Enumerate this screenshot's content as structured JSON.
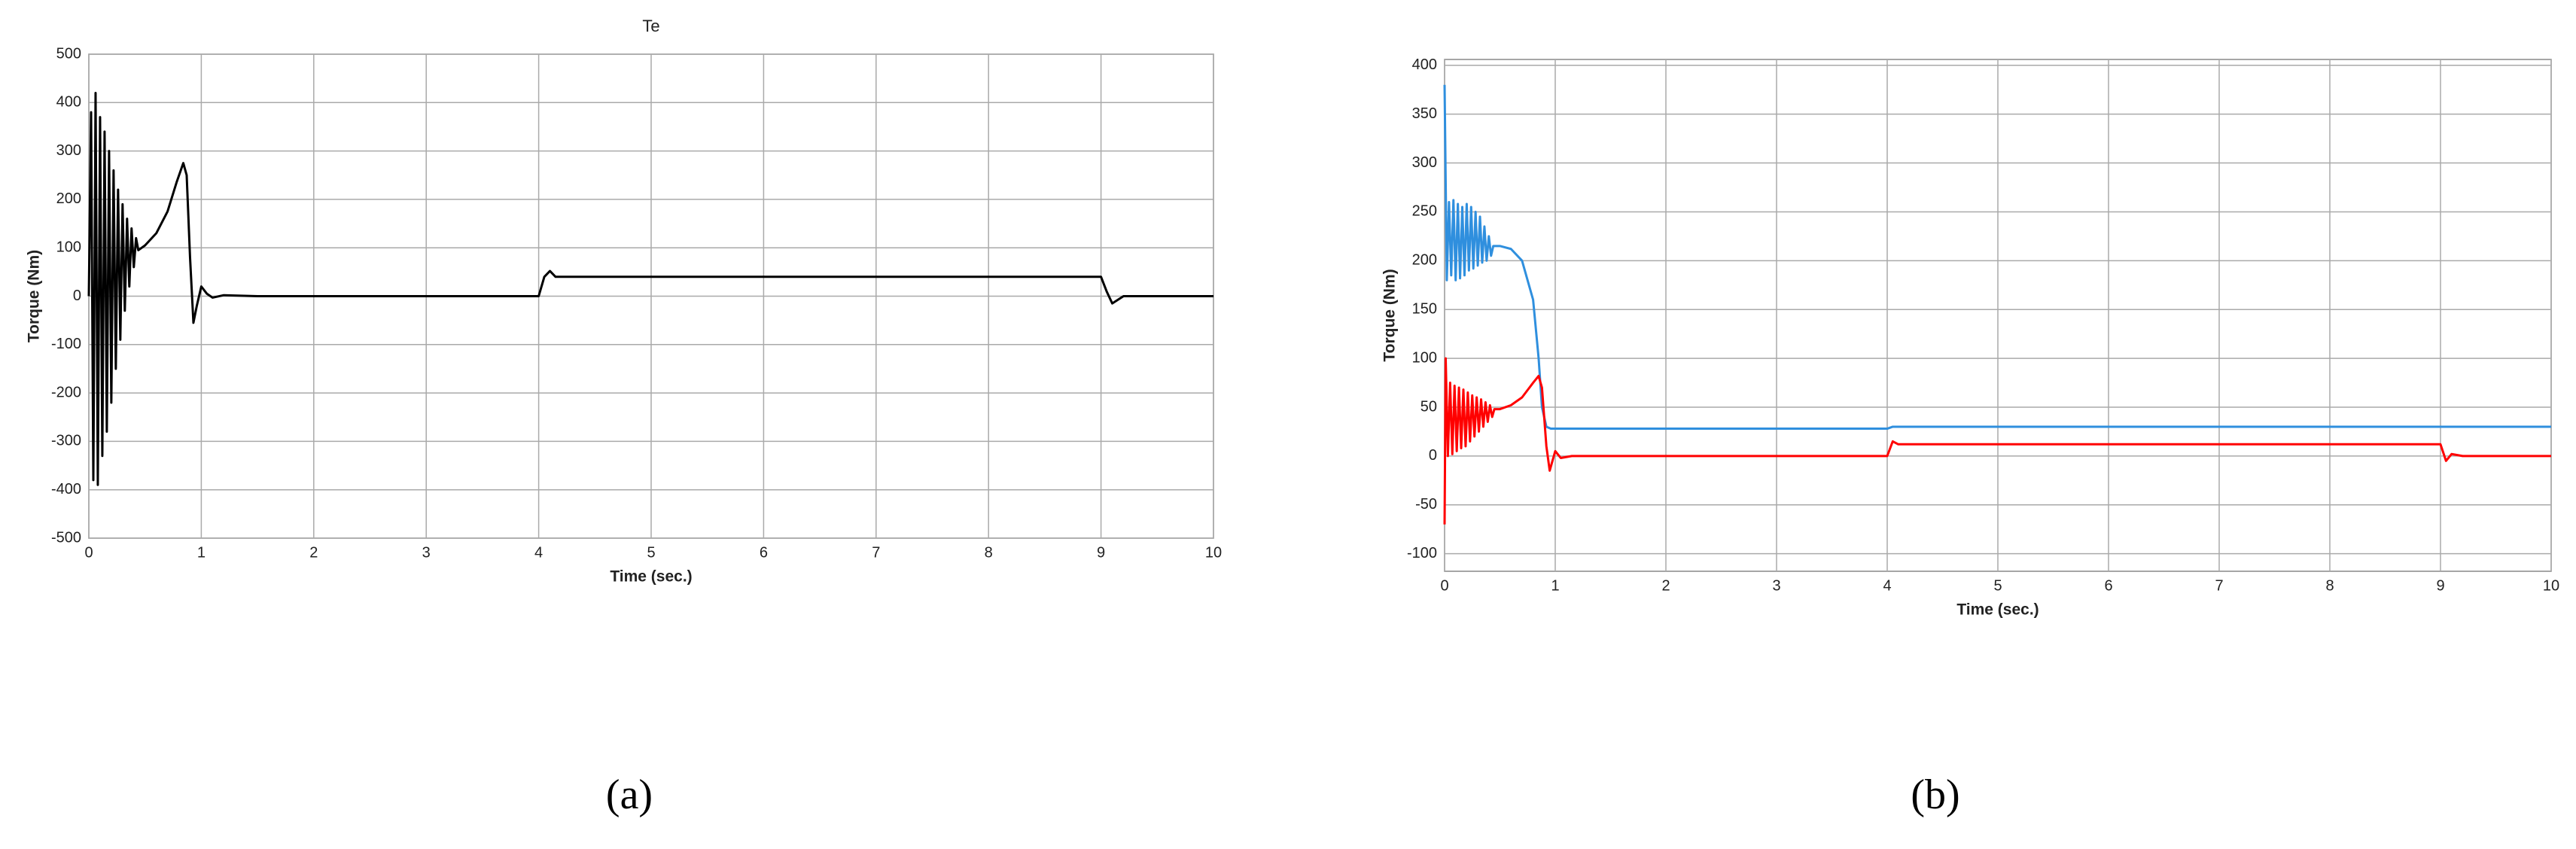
{
  "chart_data": [
    {
      "type": "line",
      "title": "Te",
      "caption": "(a)",
      "x_label": "Time (sec.)",
      "y_label": "Torque (Nm)",
      "xlim": [
        0,
        10
      ],
      "ylim": [
        -500,
        500
      ],
      "xticks": [
        0,
        1,
        2,
        3,
        4,
        5,
        6,
        7,
        8,
        9,
        10
      ],
      "yticks": [
        -500,
        -400,
        -300,
        -200,
        -100,
        0,
        100,
        200,
        300,
        400,
        500
      ],
      "grid": true,
      "series": [
        {
          "color": "#000000",
          "x": [
            0,
            0.02,
            0.04,
            0.06,
            0.08,
            0.1,
            0.12,
            0.14,
            0.16,
            0.18,
            0.2,
            0.22,
            0.24,
            0.26,
            0.28,
            0.3,
            0.32,
            0.34,
            0.36,
            0.38,
            0.4,
            0.42,
            0.44,
            0.5,
            0.6,
            0.7,
            0.78,
            0.84,
            0.87,
            0.9,
            0.93,
            0.96,
            1.0,
            1.05,
            1.1,
            1.2,
            1.5,
            4.0,
            4.05,
            4.1,
            4.15,
            4.3,
            9.0,
            9.05,
            9.1,
            9.2,
            10
          ],
          "values": [
            0,
            380,
            -380,
            420,
            -390,
            370,
            -330,
            340,
            -280,
            300,
            -220,
            260,
            -150,
            220,
            -90,
            190,
            -30,
            160,
            20,
            140,
            60,
            120,
            95,
            105,
            130,
            175,
            235,
            275,
            250,
            80,
            -55,
            -20,
            20,
            5,
            -3,
            2,
            0,
            0,
            40,
            52,
            40,
            40,
            40,
            10,
            -15,
            0,
            0
          ]
        }
      ]
    },
    {
      "type": "line",
      "caption": "(b)",
      "x_label": "Time (sec.)",
      "y_label": "Torque (Nm)",
      "xlim": [
        0,
        10
      ],
      "ylim": [
        -118,
        406
      ],
      "xticks": [
        0,
        1,
        2,
        3,
        4,
        5,
        6,
        7,
        8,
        9,
        10
      ],
      "yticks": [
        -100,
        -50,
        0,
        50,
        100,
        150,
        200,
        250,
        300,
        350,
        400
      ],
      "grid": true,
      "series": [
        {
          "color": "#2f8fde",
          "x": [
            0,
            0.02,
            0.04,
            0.06,
            0.08,
            0.1,
            0.12,
            0.14,
            0.16,
            0.18,
            0.2,
            0.22,
            0.24,
            0.26,
            0.28,
            0.3,
            0.32,
            0.34,
            0.36,
            0.38,
            0.4,
            0.42,
            0.44,
            0.5,
            0.6,
            0.7,
            0.8,
            0.85,
            0.88,
            0.92,
            0.96,
            1.0,
            1.1,
            4.0,
            4.05,
            10
          ],
          "values": [
            380,
            180,
            260,
            185,
            262,
            180,
            258,
            182,
            255,
            185,
            258,
            190,
            255,
            192,
            250,
            195,
            245,
            198,
            235,
            200,
            225,
            205,
            215,
            215,
            212,
            200,
            160,
            100,
            50,
            30,
            28,
            28,
            28,
            28,
            30,
            30
          ]
        },
        {
          "color": "#ff0000",
          "x": [
            0,
            0.01,
            0.03,
            0.05,
            0.07,
            0.09,
            0.11,
            0.13,
            0.15,
            0.17,
            0.19,
            0.21,
            0.23,
            0.25,
            0.27,
            0.29,
            0.31,
            0.33,
            0.35,
            0.37,
            0.39,
            0.41,
            0.43,
            0.45,
            0.5,
            0.6,
            0.7,
            0.8,
            0.85,
            0.88,
            0.92,
            0.95,
            1.0,
            1.05,
            1.15,
            4.0,
            4.05,
            4.1,
            4.2,
            9.0,
            9.05,
            9.1,
            9.2,
            10
          ],
          "values": [
            -70,
            100,
            0,
            75,
            2,
            72,
            5,
            70,
            8,
            68,
            10,
            65,
            15,
            62,
            20,
            60,
            25,
            58,
            30,
            55,
            35,
            52,
            40,
            48,
            48,
            52,
            60,
            75,
            82,
            70,
            10,
            -15,
            5,
            -2,
            0,
            0,
            15,
            12,
            12,
            12,
            -5,
            2,
            0,
            0
          ]
        }
      ]
    }
  ]
}
